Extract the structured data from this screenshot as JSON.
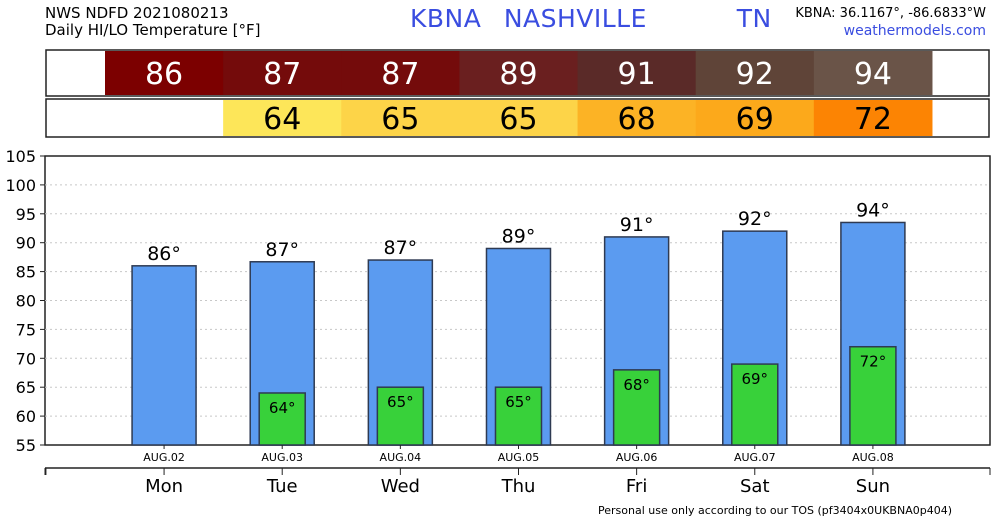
{
  "header": {
    "title_line1": "NWS NDFD 2021080213",
    "title_line2": "Daily HI/LO Temperature [°F]",
    "station_code": "KBNA",
    "station_name": "NASHVILLE",
    "station_state": "TN",
    "coordinates": "KBNA: 36.1167°, -86.6833°W",
    "site": "weathermodels.com"
  },
  "footer": {
    "disclaimer": "Personal use only according to our TOS (pf3404x0UKBNA0p404)"
  },
  "colors": {
    "hi_bar": "#5b9bf0",
    "lo_bar": "#38d13a",
    "hi_strip": [
      "#7c0000",
      "#740b0b",
      "#740b0b",
      "#6a1f1f",
      "#5a2a28",
      "#5f4438",
      "#6a5448"
    ],
    "lo_strip": [
      null,
      "#fde659",
      "#fdd448",
      "#fdd448",
      "#fcb325",
      "#fca91b",
      "#fc8403"
    ]
  },
  "chart_data": {
    "type": "bar",
    "title": "Daily HI/LO Temperature [°F]",
    "categories": [
      "Mon",
      "Tue",
      "Wed",
      "Thu",
      "Fri",
      "Sat",
      "Sun"
    ],
    "dates": [
      "AUG.02",
      "AUG.03",
      "AUG.04",
      "AUG.05",
      "AUG.06",
      "AUG.07",
      "AUG.08"
    ],
    "series": [
      {
        "values": [
          86,
          86.7,
          87,
          89,
          91,
          92,
          93.5
        ]
      },
      {
        "values": [
          null,
          64,
          65,
          65,
          68,
          69,
          72
        ]
      }
    ],
    "hi_labels": [
      "86",
      "87",
      "87",
      "89",
      "91",
      "92",
      "94"
    ],
    "lo_labels": [
      null,
      "64",
      "65",
      "65",
      "68",
      "69",
      "72"
    ],
    "degree_symbol": "°",
    "yticks": [
      55,
      60,
      65,
      70,
      75,
      80,
      85,
      90,
      95,
      100,
      105
    ],
    "ylim": [
      55,
      105
    ],
    "xlabel": "",
    "ylabel": "",
    "grid": true
  }
}
